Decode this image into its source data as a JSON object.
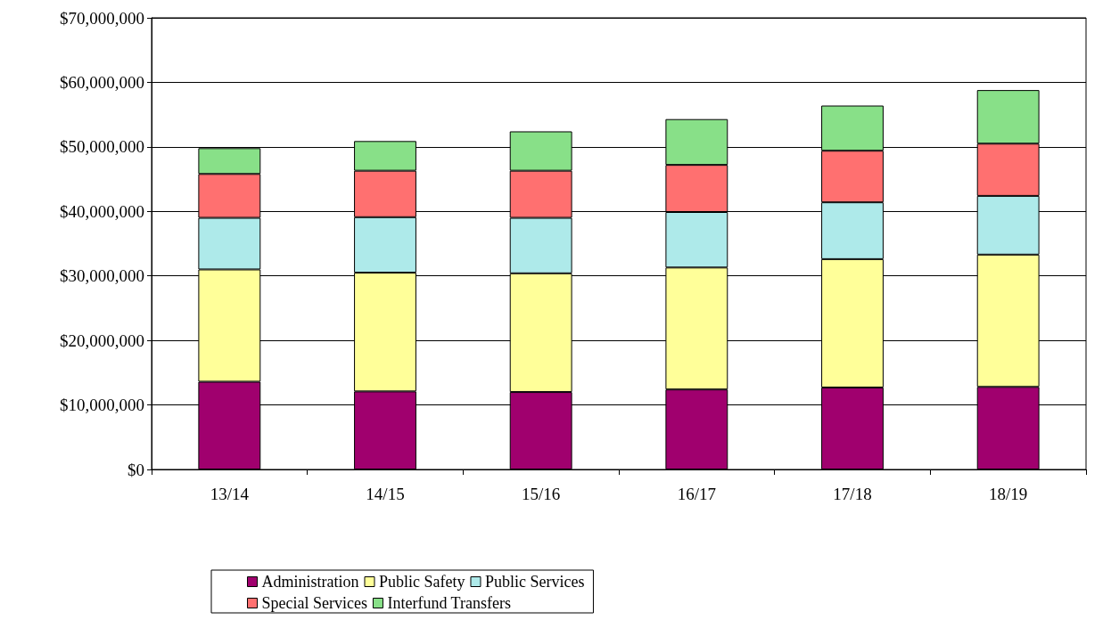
{
  "chart_data": {
    "type": "bar",
    "stacked": true,
    "categories": [
      "13/14",
      "14/15",
      "15/16",
      "16/17",
      "17/18",
      "18/19"
    ],
    "series": [
      {
        "name": "Administration",
        "color": "#a0006e",
        "values": [
          13600000,
          12100000,
          12000000,
          12400000,
          12700000,
          12800000
        ]
      },
      {
        "name": "Public Safety",
        "color": "#ffff99",
        "values": [
          17400000,
          18400000,
          18400000,
          18900000,
          19900000,
          20500000
        ]
      },
      {
        "name": "Public Services",
        "color": "#aeeaea",
        "values": [
          8000000,
          8600000,
          8600000,
          8600000,
          8800000,
          9100000
        ]
      },
      {
        "name": "Special Services",
        "color": "#ff7070",
        "values": [
          6800000,
          7200000,
          7300000,
          7300000,
          8000000,
          8100000
        ]
      },
      {
        "name": "Interfund Transfers",
        "color": "#88e088",
        "values": [
          4000000,
          4600000,
          6100000,
          7100000,
          7000000,
          8300000
        ]
      }
    ],
    "ylim": [
      0,
      70000000
    ],
    "yticks": [
      {
        "value": 0,
        "label": "$0"
      },
      {
        "value": 10000000,
        "label": "$10,000,000"
      },
      {
        "value": 20000000,
        "label": "$20,000,000"
      },
      {
        "value": 30000000,
        "label": "$30,000,000"
      },
      {
        "value": 40000000,
        "label": "$40,000,000"
      },
      {
        "value": 50000000,
        "label": "$50,000,000"
      },
      {
        "value": 60000000,
        "label": "$60,000,000"
      },
      {
        "value": 70000000,
        "label": "$70,000,000"
      }
    ],
    "grid": "y",
    "legend": "bottom"
  }
}
